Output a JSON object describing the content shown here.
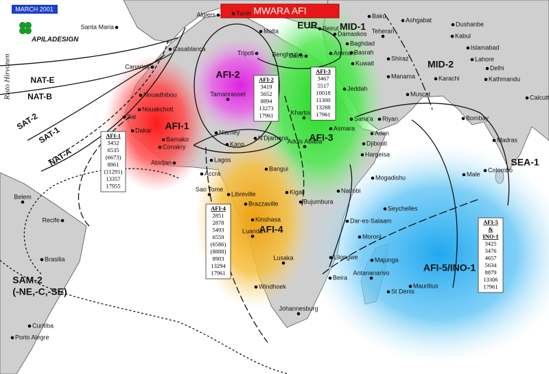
{
  "header": {
    "date": "MARCH 2001",
    "title": "MWARA AFI",
    "brand": "APILADESIGN",
    "author": "Risto Hirvonen"
  },
  "regions": [
    "AFI-1",
    "AFI-2",
    "AFI-3",
    "AFI-4",
    "AFI-5/INO-1",
    "EUR",
    "MID-1",
    "MID-2",
    "SEA-1",
    "SAM-2",
    "(-NE,-C,-SE)"
  ],
  "routes": [
    "NAT-E",
    "NAT-B",
    "SAT-2",
    "SAT-1",
    "NAT-A"
  ],
  "frequency_boxes": [
    {
      "title_lines": [
        "AFI-1"
      ],
      "frequencies": [
        "3452",
        "6535",
        "(6673)",
        "8861",
        "(11291)",
        "13357",
        "17955"
      ]
    },
    {
      "title_lines": [
        "AFI-2"
      ],
      "frequencies": [
        "3419",
        "5652",
        "8894",
        "13273",
        "17961"
      ]
    },
    {
      "title_lines": [
        "AFI-3"
      ],
      "frequencies": [
        "3467",
        "5517",
        "10018",
        "11300",
        "13288",
        "17961"
      ]
    },
    {
      "title_lines": [
        "AFI-4"
      ],
      "frequencies": [
        "2851",
        "2878",
        "5493",
        "6559",
        "(6586)",
        "(8888)",
        "8903",
        "13294",
        "17961"
      ]
    },
    {
      "title_lines": [
        "AFI-5",
        "&",
        "INO-1"
      ],
      "frequencies": [
        "3425",
        "3476",
        "4657",
        "5634",
        "8879",
        "13306",
        "17961"
      ]
    }
  ],
  "cities": [
    "Santa Maria",
    "Algiers",
    "Tunis",
    "Malta",
    "Tripoli",
    "Benghazi",
    "Cairo",
    "Beirut",
    "Damaskos",
    "Baghdad",
    "Amman",
    "Basrah",
    "Kuwait",
    "Teheran",
    "Baku",
    "Ashgabat",
    "Dushanbe",
    "Kabul",
    "Islamabad",
    "Lahore",
    "Delhi",
    "Kathmandu",
    "Shiraz",
    "Manama",
    "Karachi",
    "Muscat",
    "Calcutta",
    "Bombay",
    "Madras",
    "Colombo",
    "Male",
    "Jeddah",
    "Khartoum",
    "Asmara",
    "Sana'a",
    "Riyan",
    "Aden",
    "Djibouti",
    "Hargeisa",
    "Addis Ababa",
    "Mogadishu",
    "Nairobi",
    "Kigali",
    "Bujumbura",
    "Dar-es-Salaam",
    "Seychelles",
    "Moroni",
    "Lilongwe",
    "Majunga",
    "Antananarivo",
    "St Denis",
    "Mauritius",
    "Beira",
    "Lusaka",
    "Windhoek",
    "Johannesburg",
    "Luanda",
    "Kinshasa",
    "Brazzaville",
    "Libreville",
    "Sao Tome",
    "Bangui",
    "Lagos",
    "Accra",
    "Abidjan",
    "Bamako",
    "Conakry",
    "Dakar",
    "Sal",
    "Nouakchott",
    "Nouadhibou",
    "Canarias",
    "Casablanca",
    "Niamey",
    "Kano",
    "N'Djamena",
    "Tamanrasset",
    "Belem",
    "Recife",
    "Brasilia",
    "Curitiba",
    "Porto Alegre"
  ]
}
